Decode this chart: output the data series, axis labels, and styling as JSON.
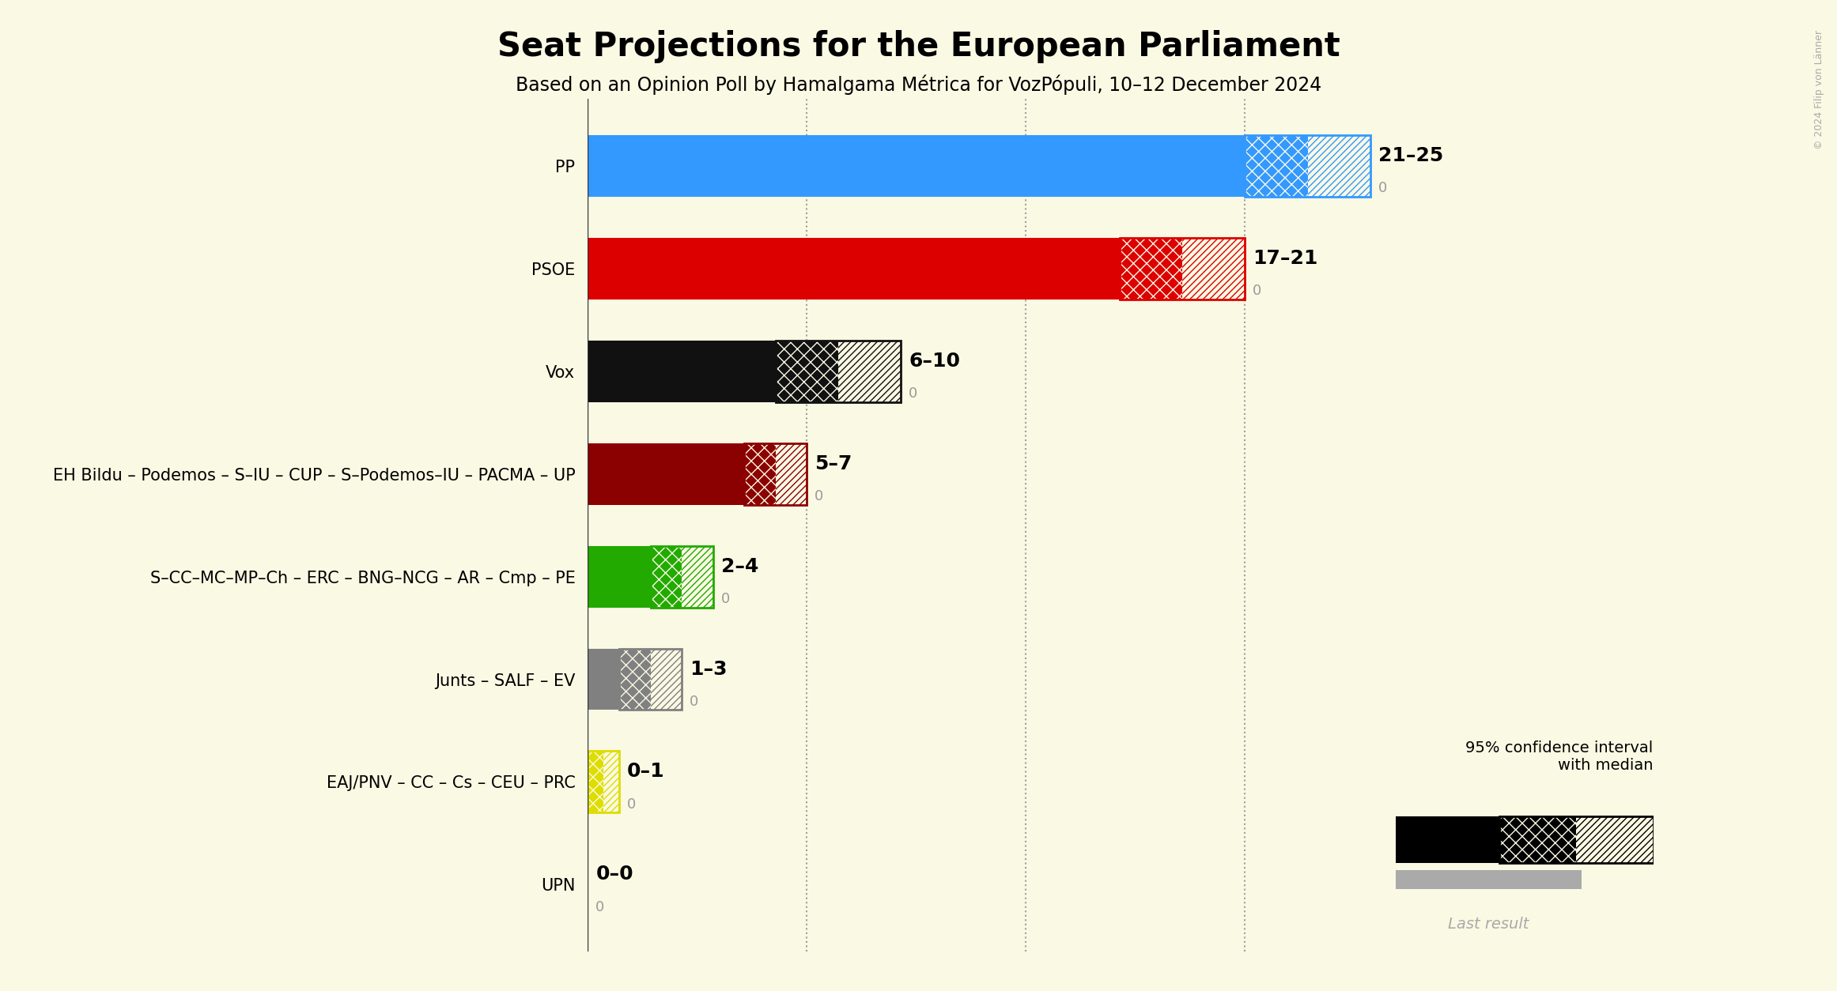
{
  "title": "Seat Projections for the European Parliament",
  "subtitle": "Based on an Opinion Poll by Hamalgama Métrica for VozPópuli, 10–12 December 2024",
  "background_color": "#FAF9E4",
  "parties": [
    "PP",
    "PSOE",
    "Vox",
    "EH Bildu – Podemos – S–IU – CUP – S–Podemos–IU – PACMA – UP",
    "S–CC–MC–MP–Ch – ERC – BNG–NCG – AR – Cmp – PE",
    "Junts – SALF – EV",
    "EAJ/PNV – CC – Cs – CEU – PRC",
    "UPN"
  ],
  "ci_low": [
    21,
    17,
    6,
    5,
    2,
    1,
    0,
    0
  ],
  "ci_high": [
    25,
    21,
    10,
    7,
    4,
    3,
    1,
    0
  ],
  "label_text": [
    "21–25",
    "17–21",
    "6–10",
    "5–7",
    "2–4",
    "1–3",
    "0–1",
    "0–0"
  ],
  "colors": [
    "#3399FF",
    "#DD0000",
    "#111111",
    "#8B0000",
    "#22AA00",
    "#808080",
    "#DDDD00",
    "#222222"
  ],
  "xlim": [
    0,
    27
  ],
  "dotted_lines": [
    7,
    14,
    21
  ],
  "copyright": "© 2024 Filip von Länner"
}
